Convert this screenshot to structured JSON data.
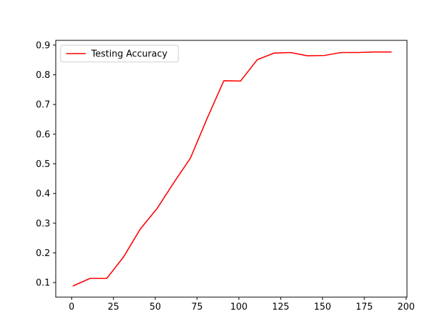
{
  "chart_data": {
    "type": "line",
    "title": "",
    "xlabel": "",
    "ylabel": "",
    "xlim": [
      -9.5,
      200.5
    ],
    "ylim": [
      0.051,
      0.916
    ],
    "x_ticks": [
      0,
      25,
      50,
      75,
      100,
      125,
      150,
      175,
      200
    ],
    "y_ticks": [
      0.1,
      0.2,
      0.3,
      0.4,
      0.5,
      0.6,
      0.7,
      0.8,
      0.9
    ],
    "x_tick_labels": [
      "0",
      "25",
      "50",
      "75",
      "100",
      "125",
      "150",
      "175",
      "200"
    ],
    "y_tick_labels": [
      "0.1",
      "0.2",
      "0.3",
      "0.4",
      "0.5",
      "0.6",
      "0.7",
      "0.8",
      "0.9"
    ],
    "grid": false,
    "legend_position": "top-left",
    "series": [
      {
        "name": "Testing Accuracy",
        "color": "#ff0000",
        "x": [
          1,
          11,
          21,
          31,
          41,
          51,
          61,
          71,
          81,
          91,
          101,
          111,
          121,
          131,
          141,
          151,
          161,
          171,
          181,
          191
        ],
        "y": [
          0.089,
          0.114,
          0.114,
          0.186,
          0.28,
          0.349,
          0.436,
          0.519,
          0.653,
          0.78,
          0.779,
          0.851,
          0.873,
          0.875,
          0.864,
          0.865,
          0.875,
          0.875,
          0.877,
          0.877
        ]
      }
    ]
  }
}
